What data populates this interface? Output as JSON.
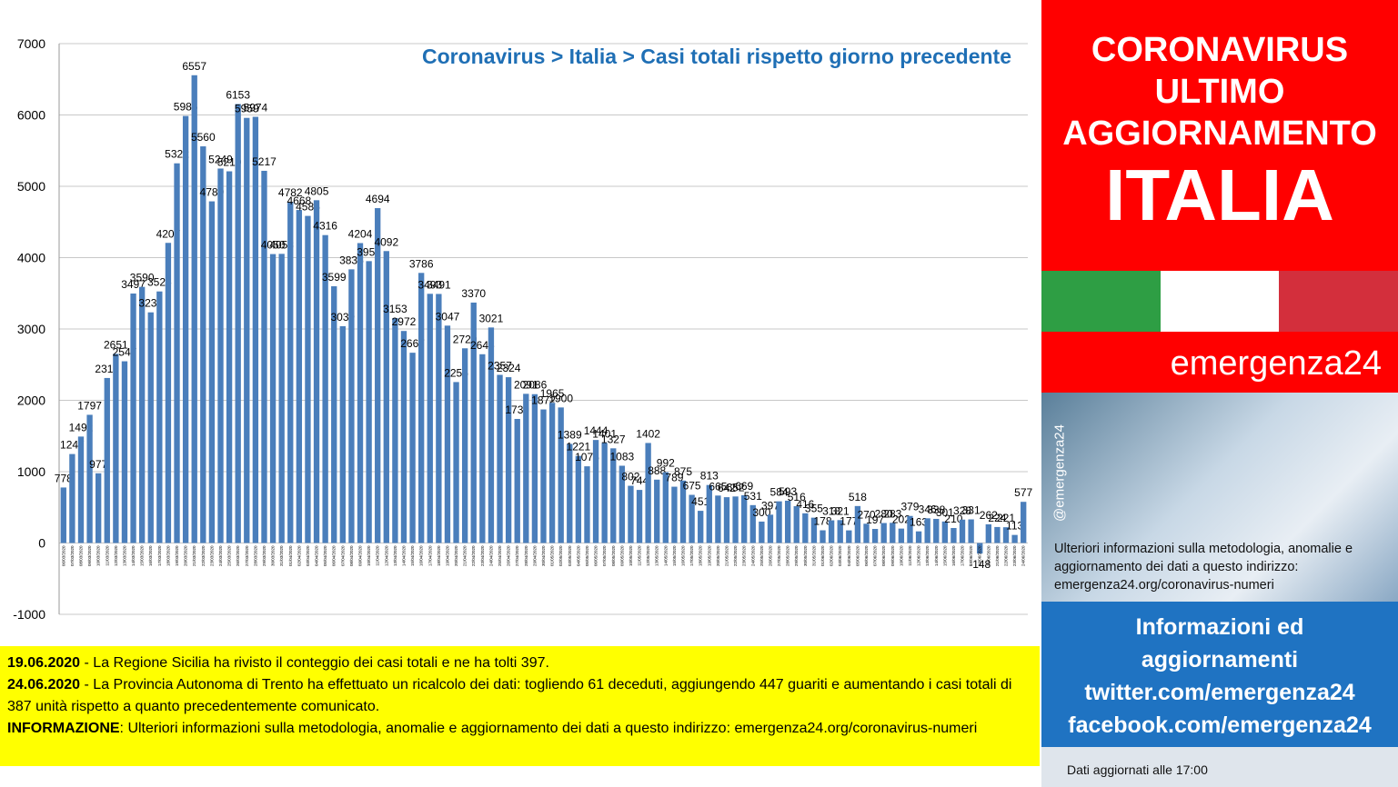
{
  "chart_data": {
    "type": "bar",
    "title": "Coronavirus > Italia > Casi totali rispetto giorno precedente",
    "color": "#4a7ebb",
    "grid": true,
    "ylim": [
      -1000,
      7000
    ],
    "yticks": [
      -1000,
      0,
      1000,
      2000,
      3000,
      4000,
      5000,
      6000,
      7000
    ],
    "categories": [
      "06/03/2020",
      "07/03/2020",
      "08/03/2020",
      "09/03/2020",
      "10/03/2020",
      "11/03/2020",
      "12/03/2020",
      "13/03/2020",
      "14/03/2020",
      "15/03/2020",
      "16/03/2020",
      "17/03/2020",
      "18/03/2020",
      "19/03/2020",
      "20/03/2020",
      "21/03/2020",
      "22/03/2020",
      "23/03/2020",
      "24/03/2020",
      "25/03/2020",
      "26/03/2020",
      "27/03/2020",
      "28/03/2020",
      "29/03/2020",
      "30/03/2020",
      "31/03/2020",
      "01/04/2020",
      "02/04/2020",
      "03/04/2020",
      "04/04/2020",
      "05/04/2020",
      "06/04/2020",
      "07/04/2020",
      "08/04/2020",
      "09/04/2020",
      "10/04/2020",
      "11/04/2020",
      "12/04/2020",
      "13/04/2020",
      "14/04/2020",
      "15/04/2020",
      "16/04/2020",
      "17/04/2020",
      "18/04/2020",
      "19/04/2020",
      "20/04/2020",
      "21/04/2020",
      "22/04/2020",
      "23/04/2020",
      "24/04/2020",
      "25/04/2020",
      "26/04/2020",
      "27/04/2020",
      "28/04/2020",
      "29/04/2020",
      "30/04/2020",
      "01/05/2020",
      "02/05/2020",
      "03/05/2020",
      "04/05/2020",
      "05/05/2020",
      "06/05/2020",
      "07/05/2020",
      "08/05/2020",
      "09/05/2020",
      "10/05/2020",
      "11/05/2020",
      "12/05/2020",
      "13/05/2020",
      "14/05/2020",
      "15/05/2020",
      "16/05/2020",
      "17/05/2020",
      "18/05/2020",
      "19/05/2020",
      "20/05/2020",
      "21/05/2020",
      "22/05/2020",
      "23/05/2020",
      "24/05/2020",
      "25/05/2020",
      "26/05/2020",
      "27/05/2020",
      "28/05/2020",
      "29/05/2020",
      "30/05/2020",
      "31/05/2020",
      "01/06/2020",
      "02/06/2020",
      "03/06/2020",
      "04/06/2020",
      "05/06/2020",
      "06/06/2020",
      "07/06/2020",
      "08/06/2020",
      "09/06/2020",
      "10/06/2020",
      "11/06/2020",
      "12/06/2020",
      "13/06/2020",
      "14/06/2020",
      "15/06/2020",
      "16/06/2020",
      "17/06/2020",
      "18/06/2020",
      "19/06/2020",
      "20/06/2020",
      "21/06/2020",
      "22/06/2020",
      "23/06/2020",
      "24/06/2020"
    ],
    "values": [
      778,
      1247,
      1492,
      1797,
      977,
      2313,
      2651,
      2547,
      3497,
      3590,
      3233,
      3526,
      4207,
      5322,
      5986,
      6557,
      5560,
      4789,
      5249,
      5210,
      6153,
      5959,
      5974,
      5217,
      4050,
      4053,
      4782,
      4668,
      4585,
      4805,
      4316,
      3599,
      3039,
      3836,
      4204,
      3951,
      4694,
      4092,
      3153,
      2972,
      2667,
      3786,
      3493,
      3491,
      3047,
      2256,
      2729,
      3370,
      2646,
      3021,
      2357,
      2324,
      1739,
      2091,
      2086,
      1872,
      1965,
      1900,
      1389,
      1221,
      1075,
      1444,
      1401,
      1327,
      1083,
      802,
      744,
      1402,
      888,
      992,
      789,
      875,
      675,
      451,
      813,
      665,
      642,
      652,
      669,
      531,
      300,
      397,
      584,
      593,
      516,
      416,
      355,
      178,
      318,
      321,
      177,
      518,
      270,
      197,
      280,
      283,
      202,
      379,
      163,
      346,
      338,
      301,
      210,
      328,
      331,
      -148,
      262,
      224,
      221,
      113,
      577
    ]
  },
  "notes": [
    {
      "bold": "19.06.2020",
      "text": " - La Regione Sicilia ha rivisto il conteggio dei casi totali e ne ha tolti 397."
    },
    {
      "bold": "24.06.2020",
      "text": " - La Provincia Autonoma di Trento ha effettuato un ricalcolo dei dati: togliendo 61 deceduti, aggiungendo 447 guariti e aumentando i casi totali di 387 unità rispetto a quanto precedentemente comunicato."
    },
    {
      "bold": "INFORMAZIONE",
      "text": ": Ulteriori informazioni sulla metodologia, anomalie e aggiornamento dei dati a questo indirizzo: emergenza24.org/coronavirus-numeri"
    }
  ],
  "sidebar": {
    "heading": [
      "CORONAVIRUS",
      "ULTIMO",
      "AGGIORNAMENTO"
    ],
    "country": "ITALIA",
    "brand": "emergenza24",
    "handle": "@emergenza24",
    "info": "Ulteriori informazioni sulla metodologia, anomalie e aggiornamento dei dati a questo indirizzo: emergenza24.org/coronavirus-numeri",
    "links": [
      "Informazioni ed aggiornamenti",
      "twitter.com/emergenza24",
      "facebook.com/emergenza24"
    ],
    "footer": "Dati aggiornati alle 17:00"
  }
}
